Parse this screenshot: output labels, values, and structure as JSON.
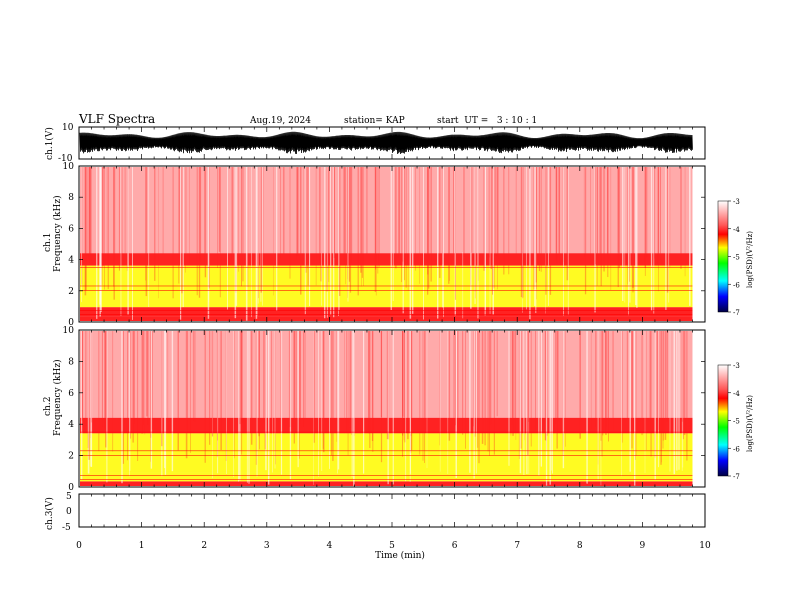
{
  "header": {
    "title": "VLF Spectra",
    "date": "Aug.19, 2024",
    "station": "station= KAP",
    "start_ut": "start  UT =   3 : 10 : 1"
  },
  "chart_data": [
    {
      "type": "line",
      "id": "ch1_waveform",
      "ylabel": "ch.1(V)",
      "yticks": [
        "10",
        "-10"
      ],
      "ylim": [
        -10,
        10
      ],
      "description_values": "dense noise waveform spanning ~-7 to +7 V over full record",
      "xlim": [
        0,
        10
      ],
      "record_end_min": 9.8
    },
    {
      "type": "heatmap",
      "id": "ch1_spectrogram",
      "ylabel": "ch.1\nFrequency (kHz)",
      "ylabel_lines": [
        "ch.1",
        "Frequency (kHz)"
      ],
      "yticks": [
        "0",
        "2",
        "4",
        "6",
        "8",
        "10"
      ],
      "ylim": [
        0,
        10
      ],
      "xlim": [
        0,
        10
      ],
      "record_end_min": 9.8,
      "bands_khz": [
        {
          "from": 0,
          "to": 0.3,
          "level": -4.2
        },
        {
          "from": 0.3,
          "to": 0.9,
          "level": -4.6
        },
        {
          "from": 0.9,
          "to": 3.6,
          "level": -5.0
        },
        {
          "from": 3.6,
          "to": 4.4,
          "level": -4.2
        },
        {
          "from": 4.4,
          "to": 10,
          "level": -3.6
        }
      ],
      "colorbar": {
        "label": "log(PSD)(V²/Hz)",
        "ticks": [
          "-3",
          "-4",
          "-5",
          "-6",
          "-7"
        ],
        "range": [
          -7,
          -3
        ]
      }
    },
    {
      "type": "heatmap",
      "id": "ch2_spectrogram",
      "ylabel_lines": [
        "ch.2",
        "Frequency (kHz)"
      ],
      "yticks": [
        "0",
        "2",
        "4",
        "6",
        "8",
        "10"
      ],
      "ylim": [
        0,
        10
      ],
      "xlim": [
        0,
        10
      ],
      "record_end_min": 9.8,
      "bands_khz": [
        {
          "from": 0,
          "to": 0.3,
          "level": -4.2
        },
        {
          "from": 0.3,
          "to": 0.9,
          "level": -4.8
        },
        {
          "from": 0.9,
          "to": 3.4,
          "level": -5.3
        },
        {
          "from": 3.4,
          "to": 4.4,
          "level": -4.3
        },
        {
          "from": 4.4,
          "to": 10,
          "level": -3.6
        }
      ],
      "colorbar": {
        "label": "log(PSD)(V²/Hz)",
        "ticks": [
          "-3",
          "-4",
          "-5",
          "-6",
          "-7"
        ],
        "range": [
          -7,
          -3
        ]
      }
    },
    {
      "type": "line",
      "id": "ch3_waveform",
      "ylabel": "ch.3(V)",
      "yticks": [
        "5",
        "0",
        "-5"
      ],
      "ylim": [
        -5,
        5
      ],
      "level_v": [
        0.4,
        1.4
      ],
      "xlim": [
        0,
        10
      ],
      "record_end_min": 9.8
    }
  ],
  "x_axis": {
    "label": "Time (min)",
    "ticks": [
      "0",
      "1",
      "2",
      "3",
      "4",
      "5",
      "6",
      "7",
      "8",
      "9",
      "10"
    ]
  },
  "colors": {
    "high": "#ff0000",
    "mid": "#ffff00",
    "low": "#00ff00",
    "bg": "#ffffff",
    "line": "#000000"
  }
}
